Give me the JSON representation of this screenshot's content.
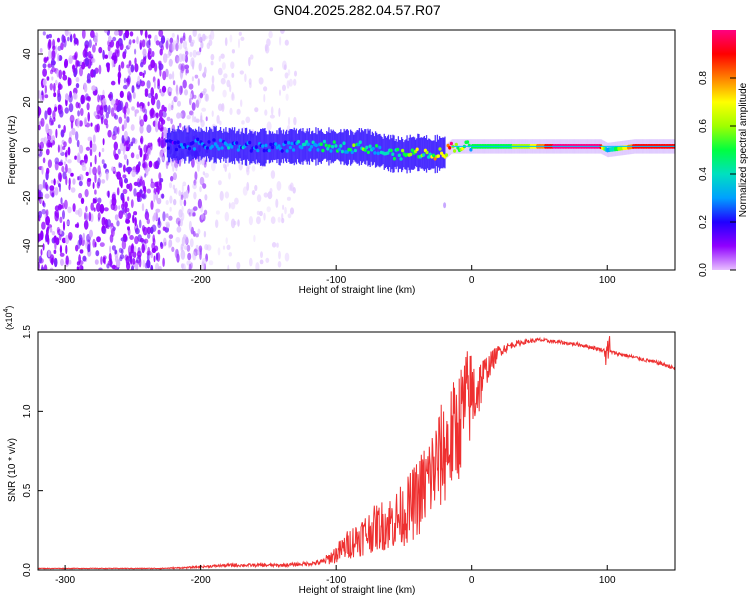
{
  "title": "GN04.2025.282.04.57.R07",
  "chart_data": [
    {
      "type": "heatmap",
      "title": "GN04.2025.282.04.57.R07",
      "xlabel": "Height of straight line (km)",
      "ylabel": "Frequency (Hz)",
      "xlim": [
        -320,
        150
      ],
      "ylim": [
        -50,
        50
      ],
      "x_ticks": [
        -300,
        -200,
        -100,
        0,
        100
      ],
      "y_ticks": [
        -40,
        -20,
        0,
        20,
        40
      ],
      "x_tick_labels": [
        "-300",
        "-200",
        "-100",
        "0",
        "100"
      ],
      "y_tick_labels": [
        "-40",
        "-20",
        "0",
        "20",
        "40"
      ],
      "colorbar": {
        "label": "Normalized spectral amplitude",
        "range": [
          0,
          1
        ],
        "ticks": [
          0.0,
          0.2,
          0.4,
          0.6,
          0.8
        ],
        "tick_labels": [
          "0.0",
          "0.2",
          "0.4",
          "0.6",
          "0.8"
        ],
        "colors": [
          "#e8c0ff",
          "#9000ff",
          "#2000ff",
          "#00a0ff",
          "#00e0c0",
          "#00ff40",
          "#a0ff00",
          "#ffff00",
          "#ff8000",
          "#ff0000",
          "#ff0080"
        ]
      },
      "signal_trace": {
        "x": [
          -225,
          -200,
          -180,
          -160,
          -140,
          -120,
          -100,
          -90,
          -80,
          -70,
          -60,
          -50,
          -40,
          -30,
          -20,
          -15,
          0,
          20,
          40,
          60,
          80,
          95,
          100,
          120,
          150
        ],
        "y": [
          2,
          2.5,
          2,
          1,
          1.5,
          1.5,
          1.5,
          1,
          1.5,
          0,
          -1.5,
          -2,
          -1,
          -2,
          -1,
          1.5,
          1.5,
          1.5,
          1.5,
          1.5,
          1.5,
          1.5,
          0,
          1.5,
          1.5
        ],
        "amplitude": [
          0.2,
          0.3,
          0.35,
          0.3,
          0.3,
          0.4,
          0.45,
          0.5,
          0.55,
          0.5,
          0.5,
          0.6,
          0.6,
          0.7,
          0.75,
          0.9,
          0.5,
          0.5,
          0.6,
          0.95,
          0.95,
          0.95,
          0.3,
          0.9,
          0.9
        ]
      },
      "noise_regions": [
        {
          "x_range": [
            -320,
            -225
          ],
          "intensity": "high"
        },
        {
          "x_range": [
            -225,
            -195
          ],
          "intensity": "medium"
        },
        {
          "x_range": [
            -195,
            -130
          ],
          "intensity": "low"
        }
      ],
      "artifacts": [
        {
          "x": -20,
          "y": -23
        }
      ]
    },
    {
      "type": "line",
      "xlabel": "Height of straight line (km)",
      "ylabel": "SNR (10 * v/v)",
      "y_scale_label": "(x10",
      "y_scale_exponent": "4",
      "xlim": [
        -320,
        150
      ],
      "ylim": [
        0,
        1.5
      ],
      "x_ticks": [
        -300,
        -200,
        -100,
        0,
        100
      ],
      "y_ticks": [
        0.0,
        0.5,
        1.0,
        1.5
      ],
      "x_tick_labels": [
        "-300",
        "-200",
        "-100",
        "0",
        "100"
      ],
      "y_tick_labels": [
        "0.0",
        "0.5",
        "1.0",
        "1.5"
      ],
      "series": [
        {
          "name": "SNR",
          "color": "#ee3030",
          "x": [
            -320,
            -300,
            -260,
            -230,
            -210,
            -200,
            -180,
            -160,
            -140,
            -120,
            -110,
            -100,
            -90,
            -80,
            -70,
            -60,
            -50,
            -40,
            -30,
            -20,
            -10,
            -5,
            0,
            5,
            10,
            20,
            30,
            40,
            50,
            60,
            70,
            80,
            90,
            100,
            110,
            120,
            130,
            140,
            150
          ],
          "y": [
            0.01,
            0.01,
            0.01,
            0.01,
            0.015,
            0.02,
            0.03,
            0.03,
            0.03,
            0.04,
            0.05,
            0.1,
            0.17,
            0.22,
            0.27,
            0.3,
            0.35,
            0.45,
            0.6,
            0.75,
            0.9,
            1.05,
            1.1,
            1.15,
            1.25,
            1.38,
            1.42,
            1.44,
            1.45,
            1.44,
            1.43,
            1.42,
            1.4,
            1.38,
            1.36,
            1.34,
            1.32,
            1.3,
            1.27
          ],
          "noise": [
            0.002,
            0.002,
            0.002,
            0.003,
            0.005,
            0.006,
            0.01,
            0.01,
            0.01,
            0.012,
            0.02,
            0.06,
            0.1,
            0.13,
            0.15,
            0.18,
            0.2,
            0.25,
            0.3,
            0.35,
            0.35,
            0.35,
            0.3,
            0.2,
            0.1,
            0.04,
            0.02,
            0.015,
            0.012,
            0.012,
            0.012,
            0.012,
            0.012,
            0.012,
            0.012,
            0.012,
            0.012,
            0.012,
            0.012
          ]
        }
      ]
    }
  ]
}
